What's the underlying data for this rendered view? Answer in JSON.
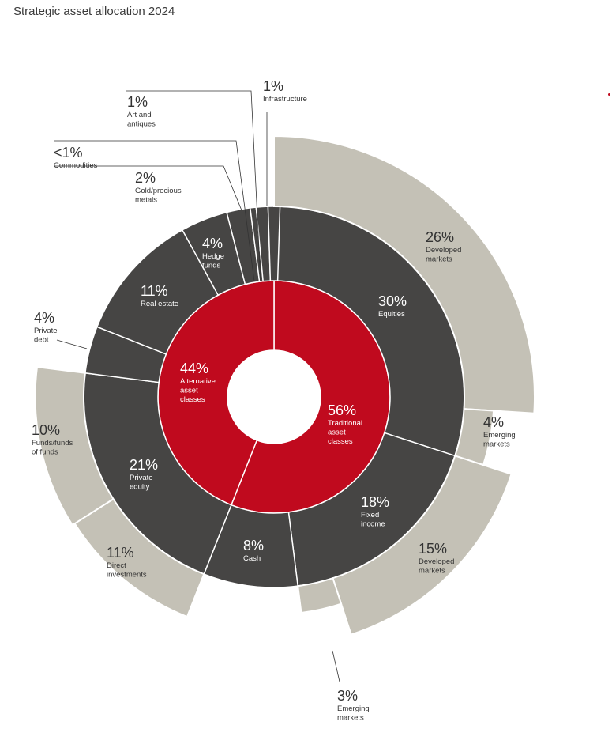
{
  "title": "Strategic asset allocation 2024",
  "colors": {
    "inner": "#c00a1e",
    "middle": "#464544",
    "outer": "#c4c1b6",
    "sep": "#ffffff",
    "dark_text": "#333333",
    "light_text": "#ffffff"
  },
  "chart_data": {
    "type": "sunburst",
    "title": "Strategic asset allocation 2024",
    "inner": [
      {
        "name": "Traditional asset classes",
        "value": 56,
        "label": "56%"
      },
      {
        "name": "Alternative asset classes",
        "value": 44,
        "label": "44%"
      }
    ],
    "middle": [
      {
        "name": "Equities",
        "value": 30,
        "label": "30%",
        "parent": "Traditional asset classes"
      },
      {
        "name": "Fixed income",
        "value": 18,
        "label": "18%",
        "parent": "Traditional asset classes"
      },
      {
        "name": "Cash",
        "value": 8,
        "label": "8%",
        "parent": "Traditional asset classes"
      },
      {
        "name": "Private equity",
        "value": 21,
        "label": "21%",
        "parent": "Alternative asset classes"
      },
      {
        "name": "Private debt",
        "value": 4,
        "label": "4%",
        "parent": "Alternative asset classes"
      },
      {
        "name": "Real estate",
        "value": 11,
        "label": "11%",
        "parent": "Alternative asset classes"
      },
      {
        "name": "Hedge funds",
        "value": 4,
        "label": "4%",
        "parent": "Alternative asset classes"
      },
      {
        "name": "Gold/precious metals",
        "value": 2,
        "label": "2%",
        "parent": "Alternative asset classes"
      },
      {
        "name": "Commodities",
        "value": 0.5,
        "label": "<1%",
        "parent": "Alternative asset classes"
      },
      {
        "name": "Art and antiques",
        "value": 1,
        "label": "1%",
        "parent": "Alternative asset classes"
      },
      {
        "name": "Infrastructure",
        "value": 1,
        "label": "1%",
        "parent": "Alternative asset classes"
      }
    ],
    "outer": [
      {
        "name": "Developed markets",
        "value": 26,
        "label": "26%",
        "parent": "Equities"
      },
      {
        "name": "Emerging markets",
        "value": 4,
        "label": "4%",
        "parent": "Equities"
      },
      {
        "name": "Developed markets",
        "value": 15,
        "label": "15%",
        "parent": "Fixed income"
      },
      {
        "name": "Emerging markets",
        "value": 3,
        "label": "3%",
        "parent": "Fixed income"
      },
      {
        "name": "Funds/funds of funds",
        "value": 10,
        "label": "10%",
        "parent": "Private equity"
      },
      {
        "name": "Direct investments",
        "value": 11,
        "label": "11%",
        "parent": "Private equity"
      }
    ]
  },
  "labels": {
    "traditional": {
      "pct": "56%",
      "lines": [
        "Traditional",
        "asset",
        "classes"
      ]
    },
    "alternative": {
      "pct": "44%",
      "lines": [
        "Alternative",
        "asset",
        "classes"
      ]
    },
    "equities": {
      "pct": "30%",
      "lines": [
        "Equities"
      ]
    },
    "fixed_income": {
      "pct": "18%",
      "lines": [
        "Fixed",
        "income"
      ]
    },
    "cash": {
      "pct": "8%",
      "lines": [
        "Cash"
      ]
    },
    "private_equity": {
      "pct": "21%",
      "lines": [
        "Private",
        "equity"
      ]
    },
    "private_debt": {
      "pct": "4%",
      "lines": [
        "Private",
        "debt"
      ]
    },
    "real_estate": {
      "pct": "11%",
      "lines": [
        "Real estate"
      ]
    },
    "hedge_funds": {
      "pct": "4%",
      "lines": [
        "Hedge",
        "funds"
      ]
    },
    "gold": {
      "pct": "2%",
      "lines": [
        "Gold/precious",
        "metals"
      ]
    },
    "commodities": {
      "pct": "<1%",
      "lines": [
        "Commodities"
      ]
    },
    "art": {
      "pct": "1%",
      "lines": [
        "Art and",
        "antiques"
      ]
    },
    "infrastructure": {
      "pct": "1%",
      "lines": [
        "Infrastructure"
      ]
    },
    "eq_developed": {
      "pct": "26%",
      "lines": [
        "Developed",
        "markets"
      ]
    },
    "eq_emerging": {
      "pct": "4%",
      "lines": [
        "Emerging",
        "markets"
      ]
    },
    "fi_developed": {
      "pct": "15%",
      "lines": [
        "Developed",
        "markets"
      ]
    },
    "fi_emerging": {
      "pct": "3%",
      "lines": [
        "Emerging",
        "markets"
      ]
    },
    "pe_funds": {
      "pct": "10%",
      "lines": [
        "Funds/funds",
        "of funds"
      ]
    },
    "pe_direct": {
      "pct": "11%",
      "lines": [
        "Direct",
        "investments"
      ]
    }
  }
}
